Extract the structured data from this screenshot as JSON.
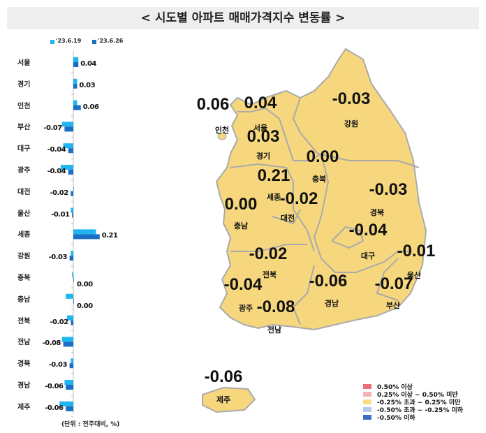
{
  "title": "< 시도별 아파트 매매가격지수 변동률 >",
  "unit_note": "(단위 : 전주대비, %)",
  "chart_data": {
    "type": "bar",
    "orientation": "horizontal",
    "categories": [
      "서울",
      "경기",
      "인천",
      "부산",
      "대구",
      "광주",
      "대전",
      "울산",
      "세종",
      "강원",
      "충북",
      "충남",
      "전북",
      "전남",
      "경북",
      "경남",
      "제주"
    ],
    "series": [
      {
        "name": "'23.6.19",
        "color": "#1fb5f0",
        "values": [
          0.04,
          0.03,
          0.03,
          -0.09,
          -0.08,
          -0.1,
          0.0,
          -0.02,
          0.18,
          -0.02,
          -0.01,
          -0.06,
          -0.05,
          -0.09,
          -0.02,
          -0.07,
          -0.11
        ]
      },
      {
        "name": "'23.6.26",
        "color": "#1a6fc4",
        "values": [
          0.04,
          0.03,
          0.06,
          -0.07,
          -0.04,
          -0.04,
          -0.02,
          -0.01,
          0.21,
          -0.03,
          0.0,
          0.0,
          -0.02,
          -0.08,
          -0.03,
          -0.06,
          -0.06
        ]
      }
    ],
    "data_labels": [
      "0.04",
      "0.03",
      "0.06",
      "-0.07",
      "-0.04",
      "-0.04",
      "-0.02",
      "-0.01",
      "0.21",
      "-0.03",
      "0.00",
      "0.00",
      "-0.02",
      "-0.08",
      "-0.03",
      "-0.06",
      "-0.06"
    ],
    "legend_position": "top"
  },
  "map": {
    "fill": "#f6d77e",
    "regions": [
      {
        "name": "인천",
        "value": "0.06"
      },
      {
        "name": "서울",
        "value": "0.04"
      },
      {
        "name": "강원",
        "value": "-0.03"
      },
      {
        "name": "경기",
        "value": "0.03"
      },
      {
        "name": "충북",
        "value": "0.00"
      },
      {
        "name": "세종",
        "value": "0.21"
      },
      {
        "name": "대전",
        "value": "-0.02"
      },
      {
        "name": "경북",
        "value": "-0.03"
      },
      {
        "name": "충남",
        "value": "0.00"
      },
      {
        "name": "대구",
        "value": "-0.04"
      },
      {
        "name": "울산",
        "value": "-0.01"
      },
      {
        "name": "전북",
        "value": "-0.02"
      },
      {
        "name": "광주",
        "value": "-0.04"
      },
      {
        "name": "경남",
        "value": "-0.06"
      },
      {
        "name": "부산",
        "value": "-0.07"
      },
      {
        "name": "전남",
        "value": "-0.08"
      },
      {
        "name": "제주",
        "value": "-0.06"
      }
    ]
  },
  "legend": [
    {
      "label": "0.50% 이상",
      "color": "#e8707a"
    },
    {
      "label": "0.25% 이상 ~ 0.50% 미만",
      "color": "#f4b3b8"
    },
    {
      "label": "-0.25% 초과 ~ 0.25% 미만",
      "color": "#f9de8a"
    },
    {
      "label": "-0.50% 초과 ~ -0.25% 이하",
      "color": "#b7c9ea"
    },
    {
      "label": "-0.50% 이하",
      "color": "#3c6cc4"
    }
  ]
}
